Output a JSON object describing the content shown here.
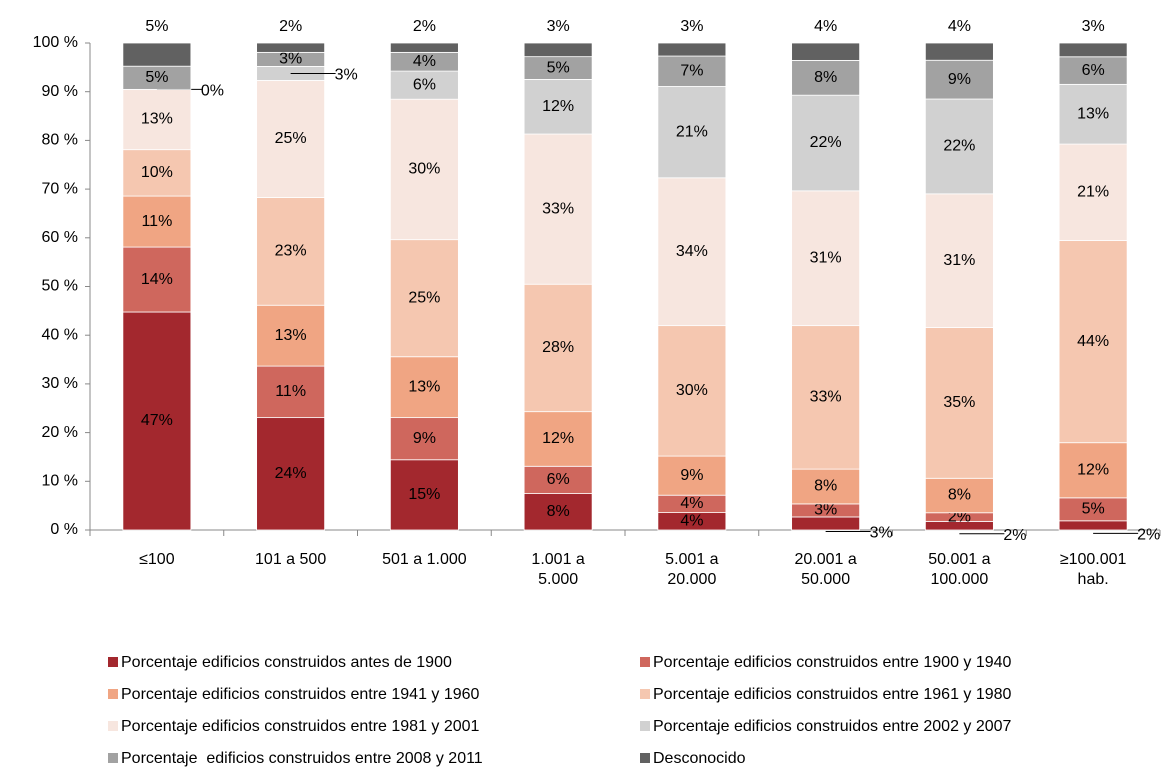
{
  "chart_data": {
    "type": "bar",
    "stacking": "percent",
    "categories": [
      [
        "≤100"
      ],
      [
        "101 a 500"
      ],
      [
        "501 a 1.000"
      ],
      [
        "1.001 a",
        "5.000"
      ],
      [
        "5.001 a",
        "20.000"
      ],
      [
        "20.001 a",
        "50.000"
      ],
      [
        "50.001 a",
        "100.000"
      ],
      [
        "≥100.001",
        "hab."
      ]
    ],
    "ylim": [
      0,
      100
    ],
    "yticks": [
      {
        "value": 0,
        "label": "0 %"
      },
      {
        "value": 10,
        "label": "10 %"
      },
      {
        "value": 20,
        "label": "20 %"
      },
      {
        "value": 30,
        "label": "30 %"
      },
      {
        "value": 40,
        "label": "40 %"
      },
      {
        "value": 50,
        "label": "50 %"
      },
      {
        "value": 60,
        "label": "60 %"
      },
      {
        "value": 70,
        "label": "70 %"
      },
      {
        "value": 80,
        "label": "80 %"
      },
      {
        "value": 90,
        "label": "90 %"
      },
      {
        "value": 100,
        "label": "100 %"
      }
    ],
    "grid": false,
    "legend": "bottom",
    "series": [
      {
        "name": "Porcentaje edificios construidos antes de 1900",
        "color": "#a3282e",
        "values": [
          47,
          24,
          15,
          8,
          4,
          3,
          2,
          2
        ],
        "value_labels": [
          "47%",
          "24%",
          "15%",
          "8%",
          "4%",
          "3%",
          "2%",
          "2%"
        ]
      },
      {
        "name": "Porcentaje edificios construidos entre 1900 y 1940",
        "color": "#cf675d",
        "values": [
          14,
          11,
          9,
          6,
          4,
          3,
          2,
          5
        ],
        "value_labels": [
          "14%",
          "11%",
          "9%",
          "6%",
          "4%",
          "3%",
          "2%",
          "5%"
        ]
      },
      {
        "name": "Porcentaje edificios construidos entre 1941 y 1960",
        "color": "#f0a583",
        "values": [
          11,
          13,
          13,
          12,
          9,
          8,
          8,
          12
        ],
        "value_labels": [
          "11%",
          "13%",
          "13%",
          "12%",
          "9%",
          "8%",
          "8%",
          "12%"
        ]
      },
      {
        "name": "Porcentaje edificios construidos entre 1961 y 1980",
        "color": "#f5c7b0",
        "values": [
          10,
          23,
          25,
          28,
          30,
          33,
          35,
          44
        ],
        "value_labels": [
          "10%",
          "23%",
          "25%",
          "28%",
          "30%",
          "33%",
          "35%",
          "44%"
        ]
      },
      {
        "name": "Porcentaje edificios construidos entre 1981 y 2001",
        "color": "#f7e6df",
        "values": [
          13,
          25,
          30,
          33,
          34,
          31,
          31,
          21
        ],
        "value_labels": [
          "13%",
          "25%",
          "30%",
          "33%",
          "34%",
          "31%",
          "31%",
          "21%"
        ]
      },
      {
        "name": "Porcentaje edificios construidos entre 2002 y 2007",
        "color": "#d1d1d1",
        "values": [
          0,
          3,
          6,
          12,
          21,
          22,
          22,
          13
        ],
        "value_labels": [
          "0%",
          "3%",
          "6%",
          "12%",
          "21%",
          "22%",
          "22%",
          "13%"
        ]
      },
      {
        "name": "Porcentaje  edificios construidos entre 2008 y 2011",
        "color": "#a2a2a2",
        "values": [
          5,
          3,
          4,
          5,
          7,
          8,
          9,
          6
        ],
        "value_labels": [
          "5%",
          "3%",
          "4%",
          "5%",
          "7%",
          "8%",
          "9%",
          "6%"
        ]
      },
      {
        "name": "Desconocido",
        "color": "#616161",
        "values": [
          5,
          2,
          2,
          3,
          3,
          4,
          4,
          3
        ],
        "value_labels": [
          "5%",
          "2%",
          "2%",
          "3%",
          "3%",
          "4%",
          "4%",
          "3%"
        ]
      }
    ]
  }
}
